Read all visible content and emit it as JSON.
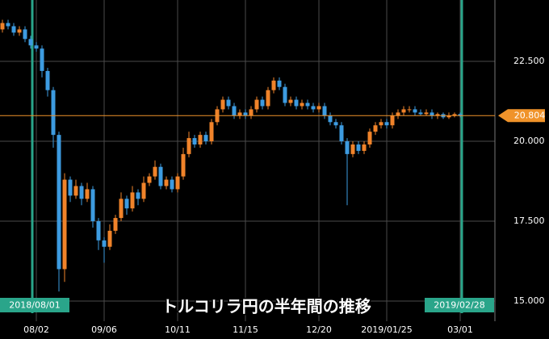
{
  "chart_data": {
    "type": "candlestick",
    "title": "トルコリラ円の半年間の推移",
    "categories": [
      null,
      null,
      null,
      null,
      null,
      null,
      "08/02",
      null,
      null,
      null,
      null,
      null,
      null,
      null,
      null,
      null,
      null,
      null,
      "09/06",
      null,
      null,
      null,
      null,
      null,
      null,
      null,
      null,
      null,
      null,
      null,
      null,
      "10/11",
      null,
      null,
      null,
      null,
      null,
      null,
      null,
      null,
      null,
      null,
      null,
      "11/15",
      null,
      null,
      null,
      null,
      null,
      null,
      null,
      null,
      null,
      null,
      null,
      null,
      "12/20",
      null,
      null,
      null,
      null,
      null,
      null,
      null,
      null,
      null,
      null,
      null,
      "2019/01/25",
      null,
      null,
      null,
      null,
      null,
      null,
      null,
      null,
      null,
      null,
      null,
      null,
      "03/01"
    ],
    "open": [
      23.5,
      23.7,
      23.6,
      23.4,
      23.5,
      23.2,
      23.0,
      22.9,
      22.2,
      21.6,
      20.2,
      16.0,
      18.8,
      18.3,
      18.6,
      18.2,
      18.5,
      17.5,
      16.9,
      16.7,
      17.2,
      17.6,
      18.2,
      17.9,
      18.4,
      18.2,
      18.7,
      18.9,
      19.2,
      18.6,
      18.8,
      18.5,
      18.9,
      19.6,
      20.1,
      19.9,
      20.2,
      20.0,
      20.6,
      21.0,
      21.3,
      21.1,
      20.8,
      20.9,
      20.8,
      21.0,
      21.3,
      21.1,
      21.6,
      21.9,
      21.7,
      21.2,
      21.3,
      21.1,
      21.2,
      21.1,
      21.0,
      21.1,
      20.8,
      20.6,
      20.5,
      20.0,
      19.6,
      19.9,
      19.7,
      19.9,
      20.3,
      20.5,
      20.6,
      20.5,
      20.8,
      20.9,
      21.0,
      21.0,
      20.9,
      20.85,
      20.9,
      20.8,
      20.85,
      20.75,
      20.8,
      20.85
    ],
    "high": [
      23.8,
      23.8,
      23.7,
      23.6,
      23.6,
      23.3,
      23.1,
      23.0,
      22.3,
      21.7,
      20.3,
      19.0,
      18.9,
      18.8,
      18.7,
      18.7,
      18.6,
      17.6,
      17.0,
      17.4,
      17.7,
      18.4,
      18.3,
      18.6,
      18.5,
      18.9,
      19.0,
      19.4,
      19.3,
      18.9,
      18.9,
      19.0,
      19.8,
      20.3,
      20.2,
      20.3,
      20.3,
      20.7,
      21.1,
      21.4,
      21.4,
      21.2,
      21.0,
      21.0,
      21.1,
      21.4,
      21.4,
      21.7,
      22.0,
      22.0,
      21.8,
      21.4,
      21.4,
      21.3,
      21.3,
      21.2,
      21.2,
      21.2,
      20.9,
      20.7,
      20.6,
      20.1,
      20.0,
      20.0,
      20.0,
      20.4,
      20.6,
      20.7,
      20.7,
      20.9,
      21.0,
      21.1,
      21.1,
      21.1,
      21.0,
      21.0,
      21.0,
      20.9,
      20.9,
      20.9,
      20.9,
      20.9
    ],
    "low": [
      23.4,
      23.5,
      23.3,
      23.3,
      23.1,
      22.9,
      22.8,
      22.0,
      21.4,
      19.8,
      15.3,
      15.6,
      18.1,
      18.2,
      18.0,
      18.1,
      17.3,
      16.6,
      16.2,
      16.6,
      17.1,
      17.5,
      17.7,
      17.8,
      18.0,
      18.1,
      18.6,
      18.8,
      18.5,
      18.5,
      18.4,
      18.4,
      18.8,
      19.5,
      19.8,
      19.8,
      19.9,
      19.9,
      20.5,
      20.9,
      21.0,
      20.7,
      20.7,
      20.7,
      20.7,
      20.9,
      21.0,
      21.0,
      21.5,
      21.6,
      21.1,
      21.1,
      21.0,
      21.0,
      21.0,
      20.9,
      20.9,
      20.7,
      20.5,
      20.4,
      19.9,
      18.0,
      19.5,
      19.6,
      19.6,
      19.8,
      20.2,
      20.4,
      20.4,
      20.4,
      20.7,
      20.8,
      20.9,
      20.8,
      20.8,
      20.8,
      20.7,
      20.7,
      20.7,
      20.7,
      20.75,
      20.75
    ],
    "close": [
      23.7,
      23.6,
      23.4,
      23.5,
      23.2,
      23.0,
      22.9,
      22.2,
      21.6,
      20.2,
      16.0,
      18.8,
      18.3,
      18.6,
      18.2,
      18.5,
      17.5,
      16.9,
      16.7,
      17.2,
      17.6,
      18.2,
      17.9,
      18.4,
      18.2,
      18.7,
      18.9,
      19.2,
      18.6,
      18.8,
      18.5,
      18.9,
      19.6,
      20.1,
      19.9,
      20.2,
      20.0,
      20.6,
      21.0,
      21.3,
      21.1,
      20.8,
      20.9,
      20.8,
      21.0,
      21.3,
      21.1,
      21.6,
      21.9,
      21.7,
      21.2,
      21.3,
      21.1,
      21.2,
      21.1,
      21.0,
      21.1,
      20.8,
      20.6,
      20.5,
      20.0,
      19.6,
      19.9,
      19.7,
      19.9,
      20.3,
      20.5,
      20.6,
      20.5,
      20.8,
      20.9,
      21.0,
      21.0,
      20.9,
      20.85,
      20.9,
      20.8,
      20.85,
      20.75,
      20.8,
      20.85,
      20.804
    ],
    "up_color": "#f0832a",
    "down_color": "#3d9be0",
    "ylim": [
      14.37,
      24.42
    ],
    "yticks": [
      {
        "value": 15,
        "label": "15.000"
      },
      {
        "value": 17.5,
        "label": "17.500"
      },
      {
        "value": 20,
        "label": "20.000"
      },
      {
        "value": 22.5,
        "label": "22.500"
      }
    ],
    "grid": true,
    "current_price": 20.804,
    "current_color": "#f0932a",
    "markers": [
      "2018/08/01",
      "2019/02/28"
    ],
    "marker_color": "#2aa58a"
  }
}
